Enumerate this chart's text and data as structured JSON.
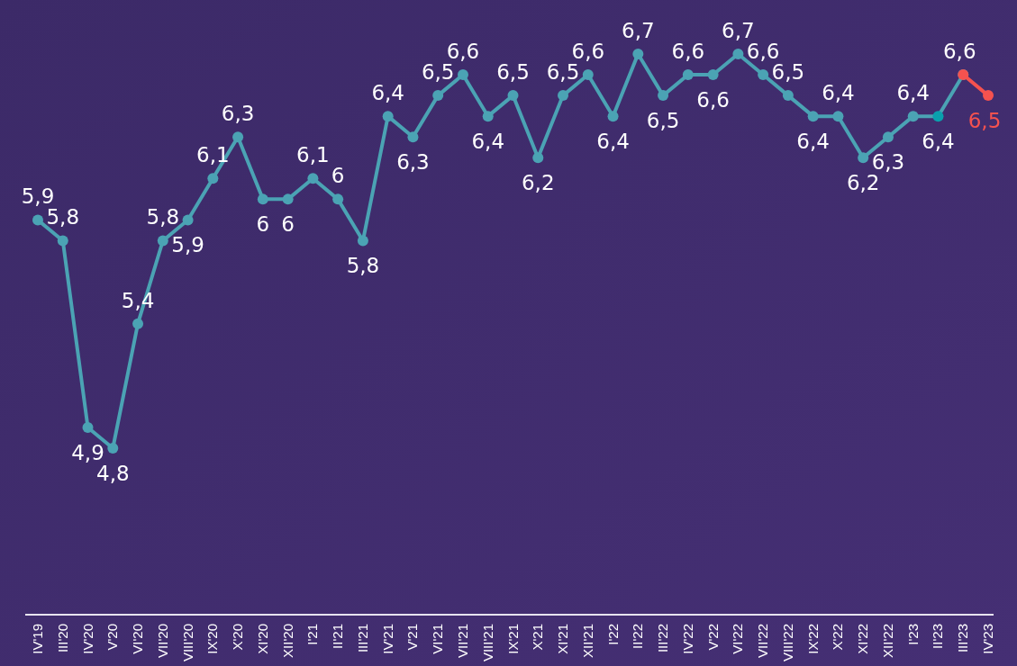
{
  "chart_data": {
    "type": "line",
    "categories": [
      "IV'19",
      "III'20",
      "IV'20",
      "V'20",
      "VI'20",
      "VII'20",
      "VIII'20",
      "IX'20",
      "X'20",
      "XI'20",
      "XII'20",
      "I'21",
      "II'21",
      "III'21",
      "IV'21",
      "V'21",
      "VI'21",
      "VII'21",
      "VIII'21",
      "IX'21",
      "X'21",
      "XI'21",
      "XII'21",
      "I'22",
      "II'22",
      "III'22",
      "IV'22",
      "V'22",
      "VI'22",
      "VII'22",
      "VIII'22",
      "IX'22",
      "X'22",
      "XI'22",
      "XII'22",
      "I'23",
      "II'23",
      "III'23",
      "IV'23"
    ],
    "series": [
      {
        "color": "#4ba3b4",
        "colors": [
          "#4ba3b4",
          "#4ba3b4",
          "#4ba3b4",
          "#4ba3b4",
          "#4ba3b4",
          "#4ba3b4",
          "#4ba3b4",
          "#4ba3b4",
          "#4ba3b4",
          "#4ba3b4",
          "#4ba3b4",
          "#4ba3b4",
          "#4ba3b4",
          "#4ba3b4",
          "#4ba3b4",
          "#4ba3b4",
          "#4ba3b4",
          "#4ba3b4",
          "#4ba3b4",
          "#4ba3b4",
          "#4ba3b4",
          "#4ba3b4",
          "#4ba3b4",
          "#4ba3b4",
          "#4ba3b4",
          "#4ba3b4",
          "#4ba3b4",
          "#4ba3b4",
          "#4ba3b4",
          "#4ba3b4",
          "#4ba3b4",
          "#4ba3b4",
          "#4ba3b4",
          "#4ba3b4",
          "#4ba3b4",
          "#4ba3b4",
          "#0aa0ad",
          "#4ba3b4",
          null
        ],
        "values": [
          5.9,
          5.8,
          4.9,
          4.8,
          5.4,
          5.8,
          5.9,
          6.1,
          6.3,
          6,
          6,
          6.1,
          6,
          5.8,
          6.4,
          6.3,
          6.5,
          6.6,
          6.4,
          6.5,
          6.2,
          6.5,
          6.6,
          6.4,
          6.7,
          6.5,
          6.6,
          6.6,
          6.7,
          6.6,
          6.5,
          6.4,
          6.4,
          6.2,
          6.3,
          6.4,
          6.4,
          6.6,
          null
        ],
        "value_labels": [
          "5,9",
          "5,8",
          "4,9",
          "4,8",
          "5,4",
          "5,8",
          "5,9",
          "6,1",
          "6,3",
          "6",
          "6",
          "6,1",
          "6",
          "5,8",
          "6,4",
          "6,3",
          "6,5",
          "6,6",
          "6,4",
          "6,5",
          "6,2",
          "6,5",
          "6,6",
          "6,4",
          "6,7",
          "6,5",
          "6,6",
          "6,6",
          "6,7",
          "6,6",
          "6,5",
          "6,4",
          "6,4",
          "6,2",
          "6,3",
          "6,4",
          "6,4",
          "6,6",
          null
        ]
      },
      {
        "color": "#f5524f",
        "values": [
          null,
          null,
          null,
          null,
          null,
          null,
          null,
          null,
          null,
          null,
          null,
          null,
          null,
          null,
          null,
          null,
          null,
          null,
          null,
          null,
          null,
          null,
          null,
          null,
          null,
          null,
          null,
          null,
          null,
          null,
          null,
          null,
          null,
          null,
          null,
          null,
          null,
          6.6,
          6.5
        ],
        "value_labels": [
          null,
          null,
          null,
          null,
          null,
          null,
          null,
          null,
          null,
          null,
          null,
          null,
          null,
          null,
          null,
          null,
          null,
          null,
          null,
          null,
          null,
          null,
          null,
          null,
          null,
          null,
          null,
          null,
          null,
          null,
          null,
          null,
          null,
          null,
          null,
          null,
          null,
          null,
          "6,5"
        ]
      }
    ],
    "marker": "circle"
  }
}
